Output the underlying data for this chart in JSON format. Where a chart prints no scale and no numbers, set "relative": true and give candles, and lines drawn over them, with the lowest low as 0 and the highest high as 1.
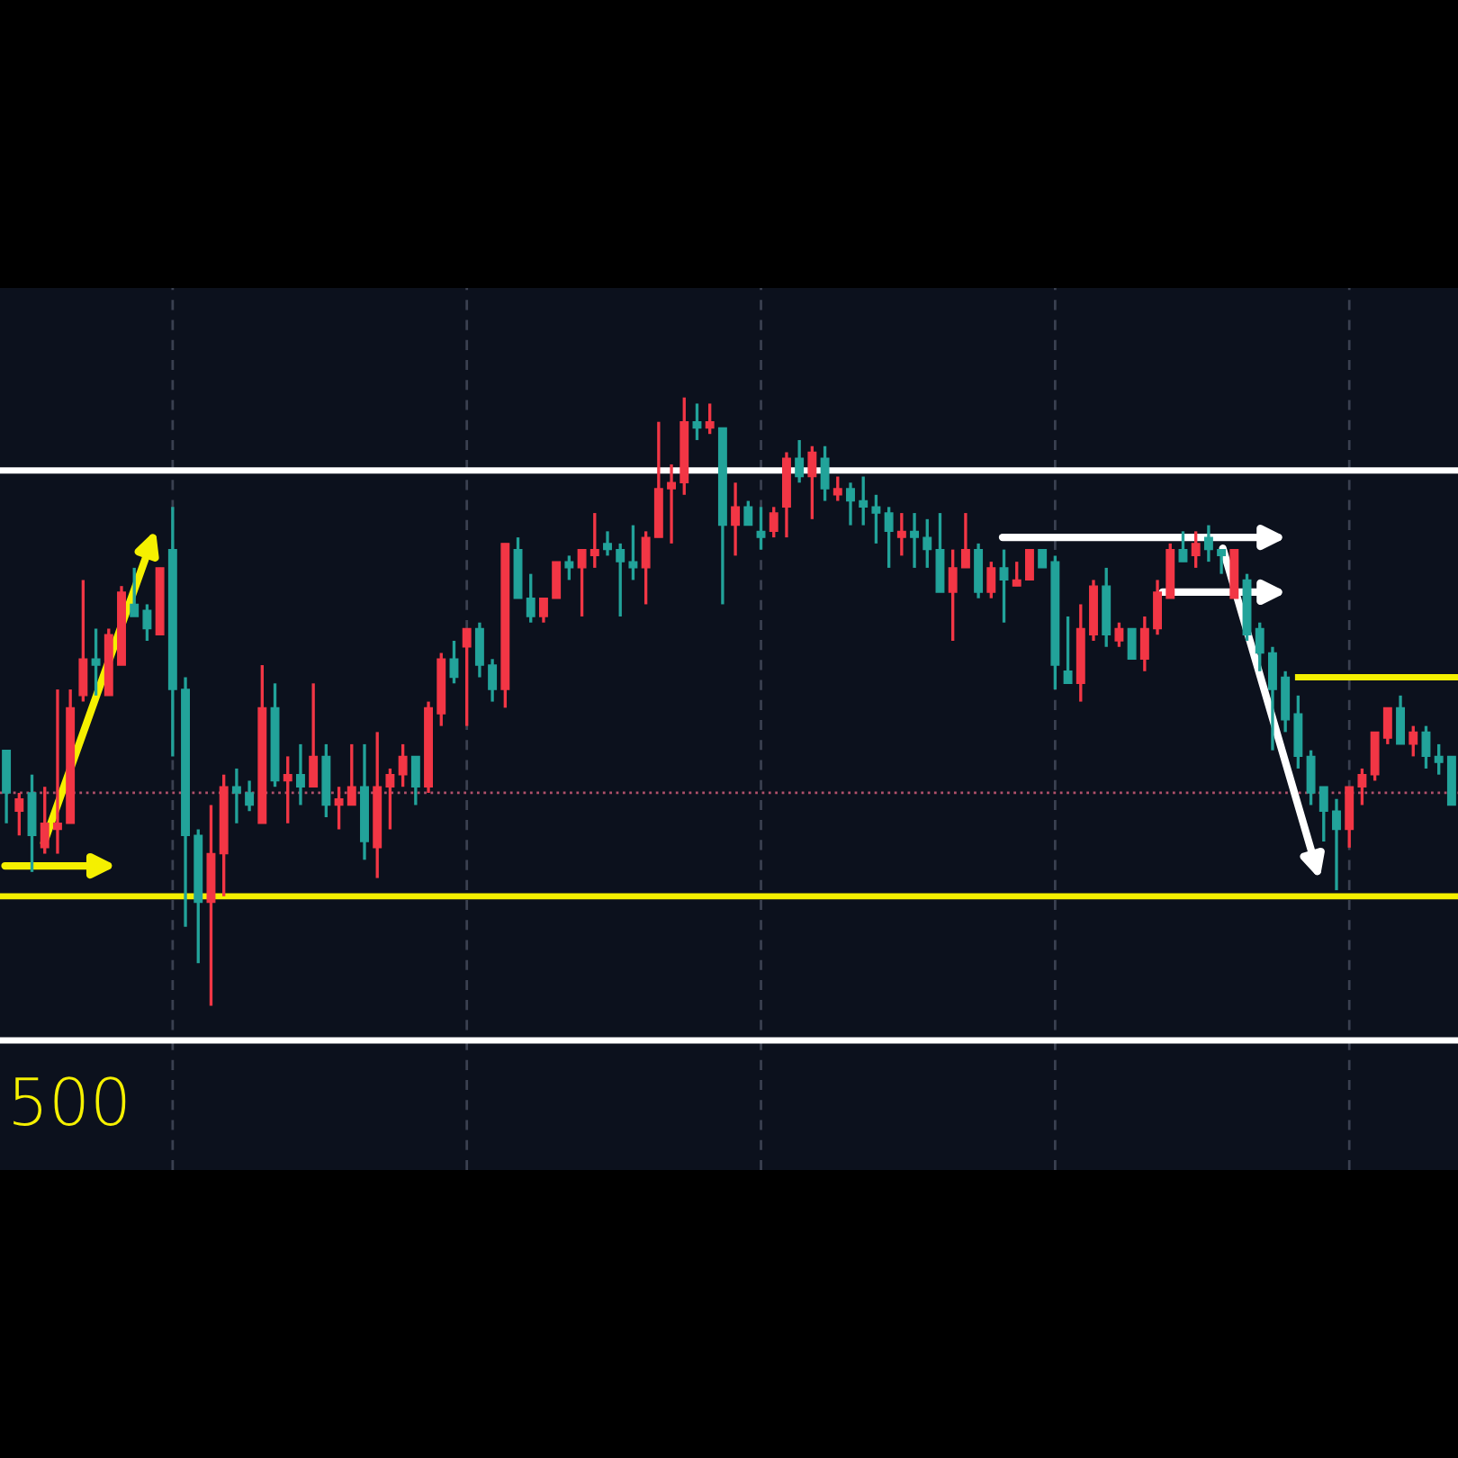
{
  "chart_data": {
    "type": "candlestick",
    "relative": true,
    "grid": "x",
    "categories": [
      null,
      null,
      null,
      null,
      null,
      null,
      null,
      null,
      null,
      null,
      null,
      null,
      null,
      null,
      null,
      null,
      null,
      null,
      null,
      null,
      null,
      null,
      null,
      null,
      null,
      null,
      null,
      null,
      null,
      null,
      null,
      null,
      null,
      null,
      null,
      null,
      null,
      null,
      null,
      null,
      null,
      null,
      null,
      null,
      null,
      null,
      null,
      null,
      null,
      null,
      null,
      null,
      null,
      null,
      null,
      null,
      null,
      null,
      null,
      null,
      null,
      null,
      null,
      null,
      null,
      null,
      null,
      null,
      null,
      null,
      null,
      null,
      null,
      null,
      null,
      null,
      null,
      null,
      null,
      null,
      null,
      null,
      null,
      null,
      null,
      null,
      null,
      null,
      null,
      null,
      null,
      null,
      null,
      null,
      null,
      null,
      null,
      null,
      null,
      null,
      null,
      null,
      null,
      null,
      null,
      null,
      null,
      null,
      null,
      null,
      null,
      null,
      null,
      null
    ],
    "ohlc": [
      [
        0.42,
        0.42,
        0.3,
        0.35
      ],
      [
        0.32,
        0.35,
        0.28,
        0.34
      ],
      [
        0.35,
        0.38,
        0.22,
        0.28
      ],
      [
        0.26,
        0.36,
        0.25,
        0.3
      ],
      [
        0.29,
        0.52,
        0.25,
        0.3
      ],
      [
        0.3,
        0.52,
        0.3,
        0.49
      ],
      [
        0.51,
        0.7,
        0.5,
        0.57
      ],
      [
        0.57,
        0.62,
        0.51,
        0.56
      ],
      [
        0.51,
        0.62,
        0.51,
        0.61
      ],
      [
        0.56,
        0.69,
        0.56,
        0.68
      ],
      [
        0.66,
        0.72,
        0.64,
        0.64
      ],
      [
        0.65,
        0.66,
        0.6,
        0.62
      ],
      [
        0.61,
        0.72,
        0.61,
        0.72
      ],
      [
        0.75,
        0.82,
        0.41,
        0.52
      ],
      [
        0.52,
        0.54,
        0.13,
        0.28
      ],
      [
        0.28,
        0.29,
        0.07,
        0.17
      ],
      [
        0.17,
        0.33,
        0,
        0.25
      ],
      [
        0.25,
        0.38,
        0.18,
        0.36
      ],
      [
        0.36,
        0.39,
        0.3,
        0.35
      ],
      [
        0.35,
        0.37,
        0.32,
        0.33
      ],
      [
        0.3,
        0.56,
        0.3,
        0.49
      ],
      [
        0.49,
        0.53,
        0.36,
        0.37
      ],
      [
        0.37,
        0.41,
        0.3,
        0.38
      ],
      [
        0.38,
        0.43,
        0.33,
        0.36
      ],
      [
        0.36,
        0.53,
        0.36,
        0.41
      ],
      [
        0.41,
        0.43,
        0.31,
        0.33
      ],
      [
        0.33,
        0.36,
        0.29,
        0.34
      ],
      [
        0.33,
        0.43,
        0.33,
        0.36
      ],
      [
        0.36,
        0.43,
        0.24,
        0.27
      ],
      [
        0.26,
        0.45,
        0.21,
        0.36
      ],
      [
        0.36,
        0.39,
        0.29,
        0.38
      ],
      [
        0.38,
        0.43,
        0.36,
        0.41
      ],
      [
        0.41,
        0.41,
        0.33,
        0.36
      ],
      [
        0.36,
        0.5,
        0.35,
        0.49
      ],
      [
        0.48,
        0.58,
        0.46,
        0.57
      ],
      [
        0.57,
        0.6,
        0.53,
        0.54
      ],
      [
        0.59,
        0.62,
        0.46,
        0.62
      ],
      [
        0.62,
        0.63,
        0.54,
        0.56
      ],
      [
        0.56,
        0.57,
        0.5,
        0.52
      ],
      [
        0.52,
        0.76,
        0.49,
        0.76
      ],
      [
        0.75,
        0.77,
        0.67,
        0.67
      ],
      [
        0.67,
        0.71,
        0.63,
        0.64
      ],
      [
        0.64,
        0.67,
        0.63,
        0.67
      ],
      [
        0.67,
        0.73,
        0.67,
        0.73
      ],
      [
        0.73,
        0.74,
        0.7,
        0.72
      ],
      [
        0.72,
        0.75,
        0.64,
        0.75
      ],
      [
        0.74,
        0.81,
        0.72,
        0.75
      ],
      [
        0.76,
        0.78,
        0.74,
        0.75
      ],
      [
        0.75,
        0.76,
        0.64,
        0.73
      ],
      [
        0.73,
        0.79,
        0.7,
        0.72
      ],
      [
        0.72,
        0.78,
        0.66,
        0.77
      ],
      [
        0.77,
        0.96,
        0.77,
        0.85
      ],
      [
        0.85,
        0.89,
        0.76,
        0.86
      ],
      [
        0.86,
        1.0,
        0.84,
        0.96
      ],
      [
        0.96,
        0.99,
        0.93,
        0.95
      ],
      [
        0.95,
        0.99,
        0.94,
        0.96
      ],
      [
        0.95,
        0.95,
        0.66,
        0.79
      ],
      [
        0.79,
        0.86,
        0.74,
        0.82
      ],
      [
        0.82,
        0.83,
        0.79,
        0.79
      ],
      [
        0.78,
        0.82,
        0.75,
        0.77
      ],
      [
        0.78,
        0.82,
        0.77,
        0.81
      ],
      [
        0.82,
        0.91,
        0.77,
        0.9
      ],
      [
        0.9,
        0.93,
        0.86,
        0.87
      ],
      [
        0.87,
        0.92,
        0.8,
        0.91
      ],
      [
        0.9,
        0.92,
        0.83,
        0.85
      ],
      [
        0.84,
        0.87,
        0.83,
        0.85
      ],
      [
        0.85,
        0.86,
        0.79,
        0.83
      ],
      [
        0.83,
        0.87,
        0.79,
        0.82
      ],
      [
        0.82,
        0.84,
        0.76,
        0.81
      ],
      [
        0.81,
        0.82,
        0.72,
        0.78
      ],
      [
        0.77,
        0.81,
        0.74,
        0.78
      ],
      [
        0.78,
        0.81,
        0.72,
        0.77
      ],
      [
        0.77,
        0.8,
        0.72,
        0.75
      ],
      [
        0.75,
        0.81,
        0.68,
        0.68
      ],
      [
        0.68,
        0.75,
        0.6,
        0.72
      ],
      [
        0.72,
        0.81,
        0.72,
        0.75
      ],
      [
        0.75,
        0.76,
        0.67,
        0.68
      ],
      [
        0.68,
        0.73,
        0.67,
        0.72
      ],
      [
        0.72,
        0.75,
        0.63,
        0.7
      ],
      [
        0.69,
        0.73,
        0.69,
        0.7
      ],
      [
        0.7,
        0.75,
        0.7,
        0.75
      ],
      [
        0.75,
        0.75,
        0.72,
        0.72
      ],
      [
        0.73,
        0.74,
        0.52,
        0.56
      ],
      [
        0.55,
        0.64,
        0.53,
        0.53
      ],
      [
        0.53,
        0.66,
        0.5,
        0.62
      ],
      [
        0.61,
        0.7,
        0.6,
        0.69
      ],
      [
        0.69,
        0.72,
        0.59,
        0.61
      ],
      [
        0.6,
        0.63,
        0.59,
        0.62
      ],
      [
        0.62,
        0.62,
        0.57,
        0.57
      ],
      [
        0.57,
        0.64,
        0.55,
        0.62
      ],
      [
        0.62,
        0.7,
        0.61,
        0.68
      ],
      [
        0.67,
        0.76,
        0.67,
        0.75
      ],
      [
        0.75,
        0.78,
        0.73,
        0.73
      ],
      [
        0.74,
        0.78,
        0.72,
        0.76
      ],
      [
        0.77,
        0.79,
        0.73,
        0.75
      ],
      [
        0.75,
        0.75,
        0.71,
        0.74
      ],
      [
        0.67,
        0.75,
        0.67,
        0.75
      ],
      [
        0.7,
        0.71,
        0.6,
        0.61
      ],
      [
        0.62,
        0.63,
        0.55,
        0.58
      ],
      [
        0.58,
        0.59,
        0.42,
        0.52
      ],
      [
        0.54,
        0.55,
        0.45,
        0.47
      ],
      [
        0.48,
        0.51,
        0.39,
        0.41
      ],
      [
        0.41,
        0.42,
        0.33,
        0.35
      ],
      [
        0.36,
        0.36,
        0.27,
        0.32
      ],
      [
        0.32,
        0.34,
        0.19,
        0.29
      ],
      [
        0.29,
        0.36,
        0.26,
        0.36
      ],
      [
        0.36,
        0.39,
        0.33,
        0.38
      ],
      [
        0.38,
        0.45,
        0.37,
        0.45
      ],
      [
        0.44,
        0.49,
        0.43,
        0.49
      ],
      [
        0.49,
        0.51,
        0.43,
        0.43
      ],
      [
        0.43,
        0.46,
        0.41,
        0.45
      ],
      [
        0.45,
        0.46,
        0.39,
        0.41
      ],
      [
        0.41,
        0.43,
        0.38,
        0.4
      ],
      [
        0.41,
        0.41,
        0.33,
        0.33
      ]
    ],
    "colors": [
      "#22a39a",
      "#f23645",
      "#22a39a",
      "#f23645",
      "#f23645",
      "#f23645",
      "#f23645",
      "#22a39a",
      "#f23645",
      "#f23645",
      "#22a39a",
      "#22a39a",
      "#f23645",
      "#22a39a",
      "#22a39a",
      "#22a39a",
      "#f23645",
      "#f23645",
      "#22a39a",
      "#22a39a",
      "#f23645",
      "#22a39a",
      "#f23645",
      "#22a39a",
      "#f23645",
      "#22a39a",
      "#f23645",
      "#f23645",
      "#22a39a",
      "#f23645",
      "#f23645",
      "#f23645",
      "#22a39a",
      "#f23645",
      "#f23645",
      "#22a39a",
      "#f23645",
      "#22a39a",
      "#22a39a",
      "#f23645",
      "#22a39a",
      "#22a39a",
      "#f23645",
      "#f23645",
      "#22a39a",
      "#f23645",
      "#f23645",
      "#22a39a",
      "#22a39a",
      "#22a39a",
      "#f23645",
      "#f23645",
      "#f23645",
      "#f23645",
      "#22a39a",
      "#f23645",
      "#22a39a",
      "#f23645",
      "#22a39a",
      "#22a39a",
      "#f23645",
      "#f23645",
      "#22a39a",
      "#f23645",
      "#22a39a",
      "#f23645",
      "#22a39a",
      "#22a39a",
      "#22a39a",
      "#22a39a",
      "#f23645",
      "#22a39a",
      "#22a39a",
      "#22a39a",
      "#f23645",
      "#f23645",
      "#22a39a",
      "#f23645",
      "#22a39a",
      "#f23645",
      "#f23645",
      "#22a39a",
      "#22a39a",
      "#22a39a",
      "#f23645",
      "#f23645",
      "#22a39a",
      "#f23645",
      "#22a39a",
      "#f23645",
      "#f23645",
      "#f23645",
      "#22a39a",
      "#f23645",
      "#22a39a",
      "#22a39a",
      "#f23645",
      "#22a39a",
      "#22a39a",
      "#22a39a",
      "#22a39a",
      "#22a39a",
      "#22a39a",
      "#22a39a",
      "#22a39a",
      "#f23645",
      "#f23645",
      "#f23645",
      "#f23645",
      "#22a39a",
      "#f23645",
      "#22a39a",
      "#22a39a",
      "#22a39a"
    ],
    "ref_lines": [
      {
        "axis": "y",
        "value": 0.88,
        "color": "#ffffff",
        "line_style": "solid"
      },
      {
        "axis": "y",
        "value": 0.18,
        "color": "#f5f000",
        "line_style": "solid"
      },
      {
        "axis": "y",
        "value": 0.35,
        "color": "#b0506a",
        "line_style": "dotted"
      }
    ],
    "annotations": [
      "500"
    ]
  }
}
